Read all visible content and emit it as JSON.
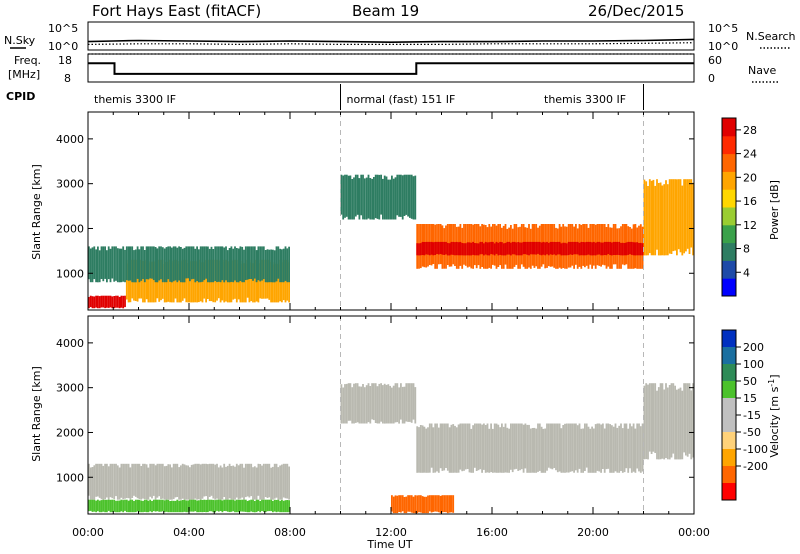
{
  "header": {
    "site": "Fort Hays East (fitACF)",
    "beam": "Beam 19",
    "date": "26/Dec/2015"
  },
  "labels": {
    "nsky": "N.Sky",
    "nsearch": "N.Search",
    "freq_line1": "Freq.",
    "freq_line2": "[MHz]",
    "nave": "Nave",
    "cpid": "CPID",
    "nsky_ticks": [
      "10^5",
      "10^0"
    ],
    "nsearch_ticks": [
      "10^5",
      "10^0"
    ],
    "freq_ticks": [
      "18",
      "8"
    ],
    "nave_ticks": [
      "60",
      "0"
    ]
  },
  "cpid_segments": [
    {
      "label": "themis 3300 IF",
      "start_h": 0,
      "end_h": 10
    },
    {
      "label": "normal (fast) 151 IF",
      "start_h": 10,
      "end_h": 22
    },
    {
      "label": "themis 3300 IF",
      "start_h": 22,
      "end_h": 24
    }
  ],
  "colors": {
    "power_scale": [
      "#0000ff",
      "#1e4aa8",
      "#2e7d62",
      "#3aa14a",
      "#9acd32",
      "#ffd700",
      "#ffa500",
      "#ff6600",
      "#ff2a00",
      "#e00000"
    ],
    "velocity_scale": [
      "#ff0000",
      "#ff6600",
      "#ffa500",
      "#ffd27a",
      "#c0c0c0",
      "#c0c0c0",
      "#4cc22c",
      "#2e8b57",
      "#1a6fa0",
      "#0030c0"
    ],
    "ground_scatter": "#b9b9b0"
  },
  "chart_data": [
    {
      "type": "line",
      "name": "noise-panel",
      "x_unit": "hours UT",
      "series": [
        {
          "name": "N.Sky",
          "x": [
            0,
            1,
            2,
            4,
            6,
            8,
            10,
            12,
            14,
            16,
            18,
            20,
            22,
            24
          ],
          "values": [
            1.5,
            1.6,
            1.7,
            1.6,
            1.5,
            1.6,
            1.5,
            1.4,
            1.5,
            1.5,
            1.6,
            1.6,
            1.7,
            1.9
          ]
        },
        {
          "name": "N.Search",
          "x": [
            0,
            2,
            4,
            6,
            8,
            10,
            12,
            14,
            16,
            18,
            20,
            22,
            24
          ],
          "values": [
            1.0,
            1.1,
            1.1,
            1.0,
            1.1,
            1.0,
            1.0,
            1.0,
            1.1,
            1.1,
            1.1,
            1.2,
            1.3
          ]
        }
      ],
      "ylim": [
        0,
        5
      ]
    },
    {
      "type": "line",
      "name": "frequency-panel",
      "x_unit": "hours UT",
      "series": [
        {
          "name": "Freq.",
          "x": [
            0,
            1.05,
            1.05,
            13,
            13,
            24
          ],
          "values": [
            14.7,
            14.7,
            10.9,
            10.9,
            14.7,
            14.7
          ]
        },
        {
          "name": "Nave",
          "x": [
            0,
            24
          ],
          "values": [
            18,
            18
          ]
        }
      ],
      "ylim": [
        8,
        18
      ]
    },
    {
      "type": "heatmap",
      "name": "power",
      "title": "",
      "xlabel": "Time UT",
      "ylabel": "Slant Range [km]",
      "x_ticks": [
        "00:00",
        "04:00",
        "08:00",
        "12:00",
        "16:00",
        "20:00",
        "00:00"
      ],
      "x_range_hours": [
        0,
        24
      ],
      "y_ticks": [
        1000,
        2000,
        3000,
        4000
      ],
      "ylim": [
        180,
        4600
      ],
      "colorbar": {
        "label": "Power [dB]",
        "ticks": [
          4,
          8,
          12,
          16,
          20,
          24,
          28
        ],
        "range": [
          0,
          30
        ]
      },
      "mode_change_lines_h": [
        10,
        22
      ],
      "echo_regions": [
        {
          "t": [
            0.0,
            1.5
          ],
          "range": [
            220,
            500
          ],
          "value": 28
        },
        {
          "t": [
            1.5,
            8.0
          ],
          "range": [
            350,
            1300
          ],
          "value": 18
        },
        {
          "t": [
            0.0,
            8.0
          ],
          "range": [
            800,
            1600
          ],
          "value": 8
        },
        {
          "t": [
            10.0,
            13.0
          ],
          "range": [
            2200,
            3200
          ],
          "value": 8
        },
        {
          "t": [
            13.0,
            22.0
          ],
          "range": [
            1100,
            2100
          ],
          "value": 22
        },
        {
          "t": [
            13.0,
            22.0
          ],
          "range": [
            1400,
            1700
          ],
          "value": 28
        },
        {
          "t": [
            22.0,
            24.0
          ],
          "range": [
            1400,
            3100
          ],
          "value": 20
        }
      ]
    },
    {
      "type": "heatmap",
      "name": "velocity",
      "title": "",
      "xlabel": "Time UT",
      "ylabel": "Slant Range [km]",
      "x_ticks": [
        "00:00",
        "04:00",
        "08:00",
        "12:00",
        "16:00",
        "20:00",
        "00:00"
      ],
      "x_range_hours": [
        0,
        24
      ],
      "y_ticks": [
        1000,
        2000,
        3000,
        4000
      ],
      "ylim": [
        180,
        4600
      ],
      "colorbar": {
        "label": "Velocity [m s-1]",
        "ticks": [
          "200",
          "100",
          "50",
          "15",
          "-15",
          "-50",
          "-100",
          "-200"
        ]
      },
      "mode_change_lines_h": [
        10,
        22
      ],
      "echo_regions": [
        {
          "t": [
            0.0,
            8.0
          ],
          "range": [
            500,
            1300
          ],
          "value": "ground"
        },
        {
          "t": [
            0.0,
            8.0
          ],
          "range": [
            220,
            500
          ],
          "value": 30
        },
        {
          "t": [
            10.0,
            13.0
          ],
          "range": [
            2200,
            3100
          ],
          "value": "ground"
        },
        {
          "t": [
            13.0,
            22.0
          ],
          "range": [
            1100,
            2200
          ],
          "value": "ground"
        },
        {
          "t": [
            22.0,
            24.0
          ],
          "range": [
            1400,
            3100
          ],
          "value": "ground"
        },
        {
          "t": [
            12.0,
            14.5
          ],
          "range": [
            200,
            600
          ],
          "value": -50
        }
      ]
    }
  ],
  "axis_labels": {
    "ylabel": "Slant Range [km]",
    "xlabel": "Time UT",
    "power": "Power [dB]",
    "velocity": "Velocity [m s",
    "velocity_sup": "-1",
    "velocity_end": "]"
  }
}
